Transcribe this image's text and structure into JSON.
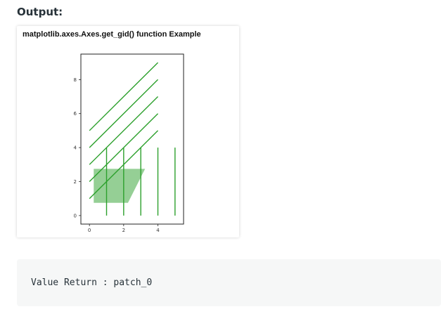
{
  "heading": "Output:",
  "figure": {
    "title": "matplotlib.axes.Axes.get_gid() function Example"
  },
  "chart_data": {
    "type": "line",
    "title": "matplotlib.axes.Axes.get_gid() function Example",
    "xlabel": "",
    "ylabel": "",
    "xlim": [
      -0.5,
      5.5
    ],
    "ylim": [
      -0.5,
      9.5
    ],
    "xticks": [
      0,
      2,
      4
    ],
    "yticks": [
      0,
      2,
      4,
      6,
      8
    ],
    "grid": false,
    "line_color": "#2ca02c",
    "patch_color": "#2ca02c",
    "patch_alpha": 0.5,
    "diagonal_lines": [
      {
        "x": [
          0,
          4
        ],
        "y": [
          1,
          5
        ]
      },
      {
        "x": [
          0,
          4
        ],
        "y": [
          2,
          6
        ]
      },
      {
        "x": [
          0,
          4
        ],
        "y": [
          3,
          7
        ]
      },
      {
        "x": [
          0,
          4
        ],
        "y": [
          4,
          8
        ]
      },
      {
        "x": [
          0,
          4
        ],
        "y": [
          5,
          9
        ]
      }
    ],
    "vertical_lines": [
      {
        "x": 1,
        "y": [
          0,
          4
        ]
      },
      {
        "x": 2,
        "y": [
          0,
          4
        ]
      },
      {
        "x": 3,
        "y": [
          0,
          4
        ]
      },
      {
        "x": 4,
        "y": [
          0,
          4
        ]
      },
      {
        "x": 5,
        "y": [
          0,
          4
        ]
      }
    ],
    "patch": {
      "vertices": [
        [
          0.25,
          0.75
        ],
        [
          2.25,
          0.75
        ],
        [
          3.25,
          2.75
        ],
        [
          0.25,
          2.75
        ]
      ]
    }
  },
  "code_output": {
    "text": "Value Return : patch_0"
  }
}
